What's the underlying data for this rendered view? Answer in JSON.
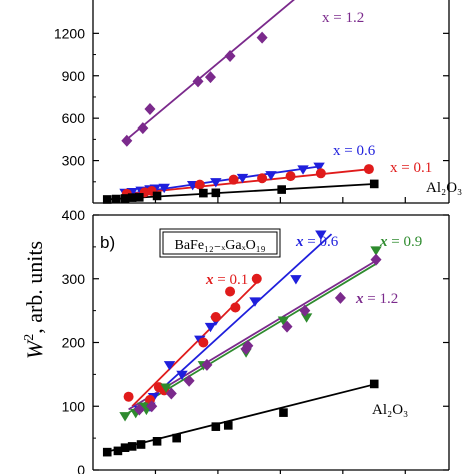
{
  "figure": {
    "ylabel_italic": "W",
    "ylabel_sup": "2",
    "ylabel_rest": ", arb. units"
  },
  "chart_data": [
    {
      "type": "scatter",
      "panel": "a",
      "panel_label": "",
      "ylim": [
        0,
        1450
      ],
      "xlim": [
        0,
        1
      ],
      "yticks": [
        300,
        600,
        900,
        1200
      ],
      "grid": false,
      "series": [
        {
          "name": "x = 1.2",
          "color": "#7b2a8c",
          "marker": "diamond",
          "x": [
            0.095,
            0.14,
            0.16,
            0.295,
            0.33,
            0.385,
            0.475
          ],
          "y": [
            440,
            530,
            665,
            860,
            890,
            1040,
            1170
          ],
          "fit": [
            [
              0.09,
              440
            ],
            [
              0.57,
              1450
            ]
          ]
        },
        {
          "name": "x = 0.6",
          "color": "#1f1fdc",
          "marker": "triangle-down",
          "x": [
            0.09,
            0.11,
            0.135,
            0.16,
            0.175,
            0.2,
            0.28,
            0.345,
            0.42,
            0.5,
            0.59,
            0.635
          ],
          "y": [
            75,
            80,
            90,
            100,
            105,
            110,
            130,
            150,
            180,
            200,
            240,
            260
          ],
          "fit": [
            [
              0.085,
              60
            ],
            [
              0.64,
              260
            ]
          ]
        },
        {
          "name": "x = 0.1",
          "color": "#e01b1b",
          "marker": "circle",
          "x": [
            0.095,
            0.145,
            0.165,
            0.3,
            0.395,
            0.475,
            0.555,
            0.64,
            0.775
          ],
          "y": [
            65,
            75,
            85,
            130,
            165,
            175,
            190,
            210,
            240
          ],
          "fit": [
            [
              0.085,
              60
            ],
            [
              0.78,
              240
            ]
          ]
        },
        {
          "name": "Al₂O₃",
          "color": "#000000",
          "marker": "square",
          "x": [
            0.04,
            0.065,
            0.09,
            0.11,
            0.13,
            0.18,
            0.31,
            0.345,
            0.53,
            0.79
          ],
          "y": [
            25,
            28,
            32,
            38,
            40,
            50,
            70,
            72,
            95,
            135
          ],
          "fit": [
            [
              0.035,
              25
            ],
            [
              0.795,
              135
            ]
          ]
        }
      ],
      "annotations": [
        {
          "text": "x = 1.2",
          "color": "#7b2a8c"
        },
        {
          "text": "x = 0.6",
          "color": "#1f1fdc"
        },
        {
          "text": "x = 0.1",
          "color": "#e01b1b"
        },
        {
          "text": "Al₂O₃",
          "color": "#000000"
        }
      ]
    },
    {
      "type": "scatter",
      "panel": "b",
      "panel_label": "b)",
      "formula": "BaFe₁₂₋ₓGaₓO₁₉",
      "ylim": [
        0,
        400
      ],
      "xlim": [
        0,
        1
      ],
      "yticks": [
        0,
        100,
        200,
        300,
        400
      ],
      "grid": false,
      "series": [
        {
          "name": "x = 0.6",
          "color": "#1f1fdc",
          "marker": "triangle-down",
          "x": [
            0.13,
            0.16,
            0.17,
            0.195,
            0.215,
            0.25,
            0.3,
            0.33,
            0.345,
            0.455,
            0.57,
            0.64
          ],
          "y": [
            95,
            100,
            115,
            130,
            165,
            150,
            205,
            225,
            235,
            265,
            300,
            370
          ],
          "fit": [
            [
              0.13,
              95
            ],
            [
              0.67,
              370
            ]
          ]
        },
        {
          "name": "x = 0.1",
          "color": "#e01b1b",
          "marker": "circle",
          "x": [
            0.1,
            0.16,
            0.185,
            0.2,
            0.31,
            0.345,
            0.385,
            0.4,
            0.46
          ],
          "y": [
            115,
            110,
            130,
            125,
            200,
            240,
            280,
            255,
            300
          ],
          "fit": [
            [
              0.11,
              100
            ],
            [
              0.47,
              300
            ]
          ]
        },
        {
          "name": "x = 0.9",
          "color": "#2e8b2e",
          "marker": "triangle-down",
          "x": [
            0.09,
            0.12,
            0.14,
            0.15,
            0.205,
            0.31,
            0.43,
            0.535,
            0.6,
            0.795
          ],
          "y": [
            85,
            90,
            100,
            95,
            130,
            165,
            185,
            235,
            240,
            345
          ],
          "fit": [
            [
              0.1,
              90
            ],
            [
              0.8,
              325
            ]
          ]
        },
        {
          "name": "x = 1.2",
          "color": "#7b2a8c",
          "marker": "diamond",
          "x": [
            0.13,
            0.165,
            0.22,
            0.27,
            0.32,
            0.43,
            0.435,
            0.545,
            0.595,
            0.695,
            0.795
          ],
          "y": [
            95,
            100,
            120,
            140,
            165,
            190,
            195,
            225,
            250,
            270,
            330
          ],
          "fit": [
            [
              0.1,
              95
            ],
            [
              0.8,
              330
            ]
          ]
        },
        {
          "name": "Al₂O₃",
          "color": "#000000",
          "marker": "square",
          "x": [
            0.04,
            0.07,
            0.09,
            0.11,
            0.135,
            0.18,
            0.235,
            0.345,
            0.38,
            0.535,
            0.79
          ],
          "y": [
            28,
            30,
            35,
            37,
            40,
            45,
            50,
            68,
            70,
            90,
            135
          ],
          "fit": [
            [
              0.035,
              28
            ],
            [
              0.795,
              135
            ]
          ]
        }
      ],
      "annotations": [
        {
          "prefix": "x",
          "text": "= 0.6",
          "color": "#1f1fdc"
        },
        {
          "prefix": "x",
          "text": "= 0.9",
          "color": "#2e8b2e"
        },
        {
          "prefix": "x",
          "text": "= 0.1",
          "color": "#e01b1b"
        },
        {
          "prefix": "x",
          "text": "= 1.2",
          "color": "#7b2a8c"
        },
        {
          "prefix": "",
          "text": "Al₂O₃",
          "color": "#000000"
        }
      ]
    }
  ]
}
